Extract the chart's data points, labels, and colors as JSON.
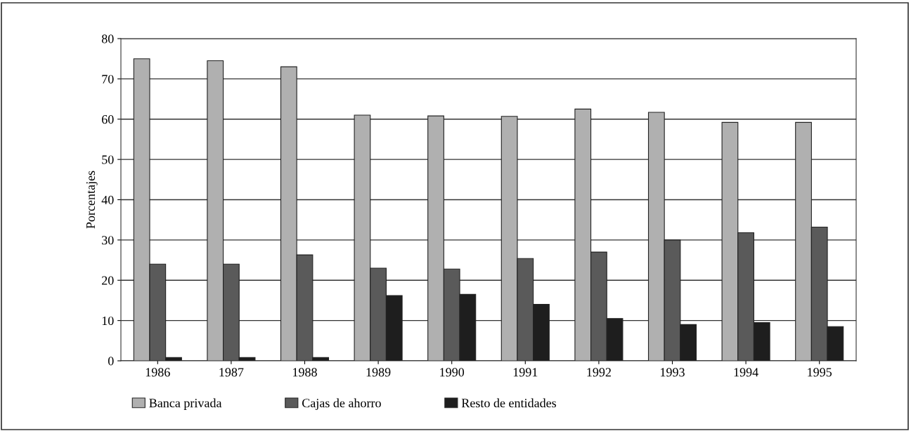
{
  "chart_data": {
    "type": "bar",
    "ylabel": "Porcentajes",
    "categories": [
      "1986",
      "1987",
      "1988",
      "1989",
      "1990",
      "1991",
      "1992",
      "1993",
      "1994",
      "1995"
    ],
    "series": [
      {
        "name": "Banca privada",
        "color": "#b0b0b0",
        "values": [
          75,
          74.5,
          73,
          61,
          60.8,
          60.7,
          62.5,
          61.7,
          59.2,
          59.2
        ]
      },
      {
        "name": "Cajas de ahorro",
        "color": "#5a5a5a",
        "values": [
          24,
          24,
          26.3,
          23,
          22.8,
          25.4,
          27,
          30,
          31.8,
          33.2
        ]
      },
      {
        "name": "Resto de entidades",
        "color": "#1e1e1e",
        "values": [
          0.8,
          0.8,
          0.8,
          16.2,
          16.5,
          14,
          10.5,
          9,
          9.5,
          8.5
        ]
      }
    ],
    "ylim": [
      0,
      80
    ],
    "yticks": [
      0,
      10,
      20,
      30,
      40,
      50,
      60,
      70,
      80
    ],
    "grid": "y",
    "legend": "bottom"
  }
}
